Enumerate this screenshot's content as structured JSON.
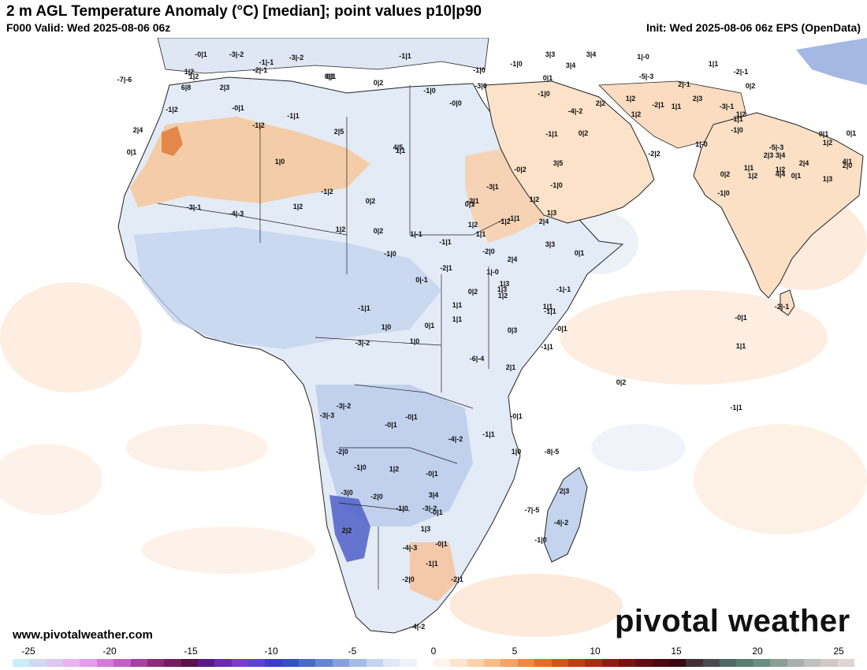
{
  "header": {
    "title": "2 m AGL Temperature Anomaly (°C) [median]; point values p10|p90",
    "valid": "F000 Valid: Wed 2025-08-06 06z",
    "init": "Init: Wed 2025-08-06 06z EPS (OpenData)"
  },
  "footer": {
    "website": "www.pivotalweather.com",
    "brand": "pivotal weather"
  },
  "colorbar": {
    "ticks": [
      "-25",
      "-20",
      "-15",
      "-10",
      "-5",
      "0",
      "5",
      "10",
      "15",
      "20",
      "25"
    ],
    "colors": [
      "#c8eef8",
      "#d2d8f2",
      "#dcc8f0",
      "#e8b4ee",
      "#e49ce8",
      "#d47ad8",
      "#c25ec8",
      "#a8409e",
      "#8e2a7a",
      "#741c60",
      "#5a1048",
      "#581a86",
      "#6a2ab2",
      "#7a3ccc",
      "#5a46cc",
      "#3c40c0",
      "#3652bc",
      "#4a6ac8",
      "#6684d2",
      "#86a0dc",
      "#a6bce6",
      "#c4d4ef",
      "#dee8f6",
      "#eef3f9",
      "#ffffff",
      "#fff4ea",
      "#fde4cc",
      "#fcd2ac",
      "#f9bc86",
      "#f5a262",
      "#ee8840",
      "#e46e24",
      "#d45616",
      "#bc4012",
      "#a62e12",
      "#8e1e14",
      "#781214",
      "#620c16",
      "#4e0a14",
      "#3a0810",
      "#3e3036",
      "#4a4a4e",
      "#4e6a62",
      "#5a7e72",
      "#6a8e82",
      "#8a9e96",
      "#a6b0ac",
      "#c0c0c0",
      "#d2c8c8",
      "#e0d4d4"
    ]
  },
  "chart_data": {
    "type": "map",
    "variable": "2 m AGL Temperature Anomaly (°C) [median]; point values p10|p90",
    "colorbar_range": [
      -25,
      25
    ],
    "point_values": [
      "-0|1",
      "-3|-2",
      "-3|-2",
      "-1|-1",
      "-7|-6",
      "1|2",
      "-2|-1",
      "-1|1",
      "6|8",
      "2|3",
      "-0|1",
      "-1|2",
      "-1|1",
      "-1|2",
      "2|5",
      "0|1",
      "-1|0",
      "0|1",
      "0|2",
      "-0|0",
      "-1|0",
      "3|3",
      "3|4",
      "1|-0",
      "3|4",
      "-3|0",
      "-1|0",
      "2|4",
      "0|1",
      "1|2",
      "-5|-3",
      "1|2",
      "2|-1",
      "1|1",
      "-2|-1",
      "1|1",
      "2|2",
      "1|2",
      "-2|1",
      "2|3",
      "-3|-1",
      "0|2",
      "1|-0",
      "-1|0",
      "-4|-2",
      "0|2",
      "-1|0",
      "0|1",
      "-1|1",
      "-5|-3",
      "1|2",
      "0|1",
      "0|1",
      "0|1",
      "2|0",
      "1|2",
      "1|2",
      "1|1",
      "-2|2",
      "-1|0",
      "2|3",
      "4|1",
      "-1|1",
      "0|2",
      "1|2",
      "4|4",
      "2|4",
      "3|4",
      "1|3",
      "-1|0",
      "1|2",
      "3|5",
      "1|3",
      "-1|1",
      "2|4",
      "3|3",
      "1|3",
      "-2|-1",
      "-4|-3",
      "-3|-1",
      "1|2",
      "-1|2",
      "0|2",
      "1|1",
      "1|0",
      "1|2",
      "4|5",
      "-2|1",
      "-3|1",
      "-0|2",
      "0|1",
      "1|2",
      "0|2",
      "-1|0",
      "1|-1",
      "-1|1",
      "1|1",
      "-1|2",
      "2|4",
      "-2|1",
      "-2|0",
      "0|-1",
      "1|-0",
      "1|1",
      "0|2",
      "1|3",
      "0|1",
      "-1|-1",
      "1|1",
      "-1|1",
      "1|2",
      "1|1",
      "0|1",
      "0|3",
      "-0|1",
      "-1|1",
      "2|1",
      "1|1",
      "-0|1",
      "0|2",
      "-1|1",
      "1|0",
      "-1|1",
      "1|0",
      "-6|-4",
      "-3|-2",
      "-0|1",
      "-0|1",
      "-0|1",
      "-1|1",
      "-3|-2",
      "-4|-2",
      "-3|-3",
      "-2|0",
      "-1|0",
      "1|2",
      "-0|1",
      "1|0",
      "-8|-5",
      "-3|0",
      "-2|0",
      "-1|0",
      "3|4",
      "-3|-2",
      "-7|-5",
      "-0|1",
      "2|2",
      "-4|-3",
      "-0|1",
      "-1|1",
      "-4|-2",
      "-1|0",
      "1|3",
      "2|3",
      "-2|0",
      "-4|-2",
      "-2|1"
    ]
  }
}
